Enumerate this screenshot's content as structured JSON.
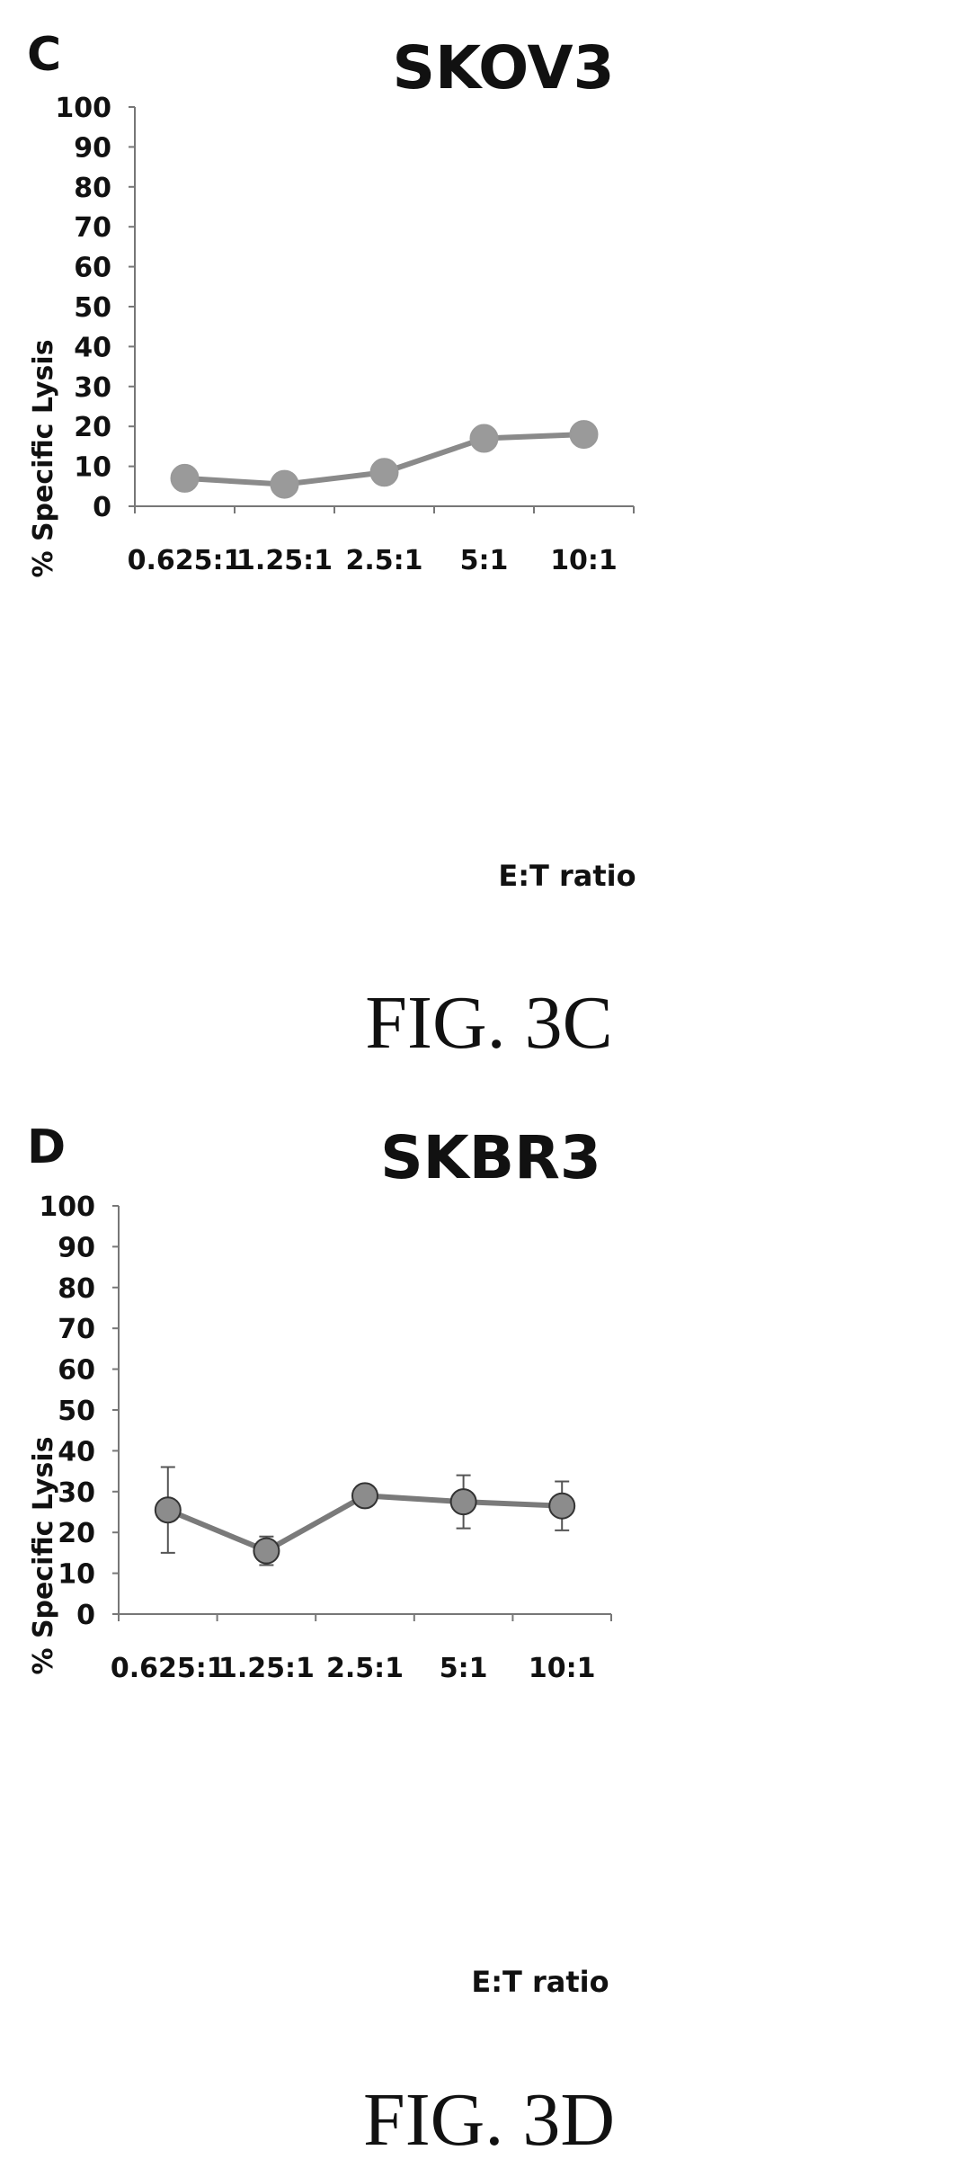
{
  "chart_data": [
    {
      "type": "line",
      "panel_letter": "C",
      "title": "SKOV3",
      "xlabel": "E:T ratio",
      "ylabel": "% Specific Lysis",
      "categories": [
        "0.625:1",
        "1.25:1",
        "2.5:1",
        "5:1",
        "10:1"
      ],
      "series": [
        {
          "values": [
            7,
            5.5,
            8.5,
            17,
            18
          ],
          "error": [
            2.5,
            1,
            1,
            1,
            1
          ]
        }
      ],
      "ylim": [
        0,
        100
      ],
      "yticks": [
        0,
        10,
        20,
        30,
        40,
        50,
        60,
        70,
        80,
        90,
        100
      ],
      "grid": false,
      "legend": "none",
      "caption": "FIG. 3C",
      "colors": {
        "line": "#8a8a8a",
        "marker": "#9a9a9a"
      }
    },
    {
      "type": "line",
      "panel_letter": "D",
      "title": "SKBR3",
      "xlabel": "E:T ratio",
      "ylabel": "% Specific Lysis",
      "categories": [
        "0.625:1",
        "1.25:1",
        "2.5:1",
        "5:1",
        "10:1"
      ],
      "series": [
        {
          "values": [
            25.5,
            15.5,
            29,
            27.5,
            26.5
          ],
          "error": [
            10.5,
            3.5,
            1.5,
            6.5,
            6
          ]
        }
      ],
      "ylim": [
        0,
        100
      ],
      "yticks": [
        0,
        10,
        20,
        30,
        40,
        50,
        60,
        70,
        80,
        90,
        100
      ],
      "grid": false,
      "legend": "none",
      "caption": "FIG. 3D",
      "colors": {
        "line": "#7a7a7a",
        "marker": "#8c8c8c"
      }
    }
  ]
}
